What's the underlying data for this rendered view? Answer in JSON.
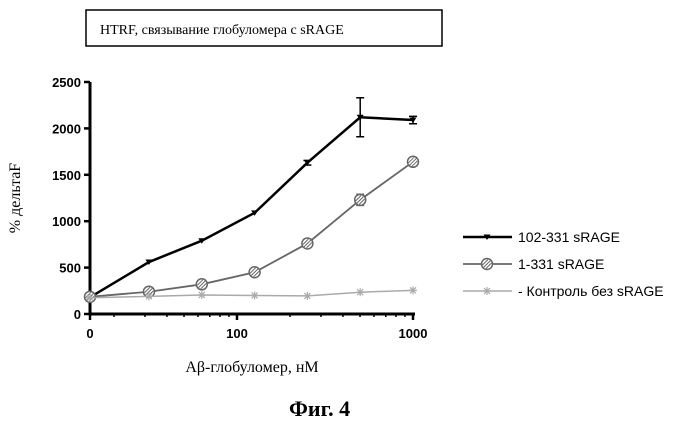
{
  "chart_data": {
    "type": "line",
    "title": "HTRF, связывание глобуломера с sRAGE",
    "xlabel": "Aβ-глобуломер, нМ",
    "ylabel": "% дельтаF",
    "x_scale": "log-with-zero",
    "x_ticks": [
      {
        "value": 0,
        "label": "0"
      },
      {
        "value": 100,
        "label": "100"
      },
      {
        "value": 1000,
        "label": "1000"
      }
    ],
    "ylim": [
      0,
      2500
    ],
    "y_ticks": [
      0,
      500,
      1000,
      1500,
      2000,
      2500
    ],
    "legend_position": "right",
    "series": [
      {
        "name": "102-331 sRAGE",
        "color": "#000000",
        "marker": "triangle-down",
        "x": [
          0,
          31.6,
          63.1,
          125.9,
          251.2,
          501.2,
          1000
        ],
        "y": [
          180,
          560,
          790,
          1090,
          1630,
          2120,
          2090
        ],
        "error": [
          0,
          0,
          0,
          0,
          25,
          210,
          40
        ]
      },
      {
        "name": "1-331 sRAGE",
        "color": "#666666",
        "marker": "circle-hatched",
        "x": [
          0,
          31.6,
          63.1,
          125.9,
          251.2,
          501.2,
          1000
        ],
        "y": [
          185,
          240,
          320,
          450,
          760,
          1230,
          1640
        ],
        "error": [
          0,
          0,
          0,
          0,
          0,
          60,
          0
        ]
      },
      {
        "name": "- Контроль без sRAGE",
        "color": "#aaaaaa",
        "marker": "star",
        "x": [
          0,
          31.6,
          63.1,
          125.9,
          251.2,
          501.2,
          1000
        ],
        "y": [
          175,
          190,
          205,
          200,
          195,
          235,
          255
        ],
        "error": [
          0,
          0,
          0,
          0,
          0,
          0,
          0
        ]
      }
    ]
  },
  "caption": "Фиг. 4"
}
